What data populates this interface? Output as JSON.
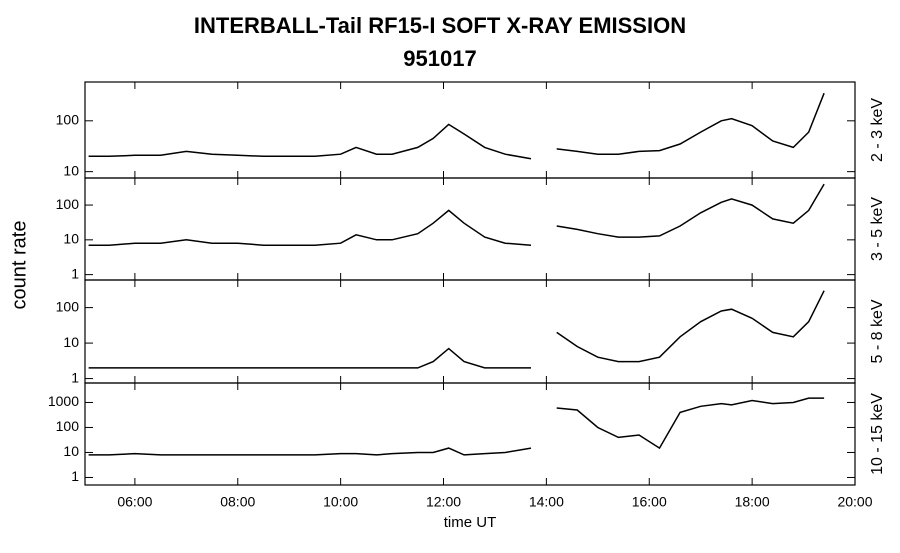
{
  "title": "INTERBALL-Tail RF15-I SOFT X-RAY EMISSION",
  "subtitle": "951017",
  "ylabel": "count rate",
  "xlabel": "time UT",
  "chart_data": [
    {
      "type": "line",
      "ylabel": "2 - 3 keV",
      "color": "#000000",
      "log": true,
      "xlim": [
        5.03,
        20
      ],
      "ylim": [
        7.5,
        580
      ],
      "yticks": [
        10,
        100
      ],
      "x": [
        5.1,
        5.5,
        6,
        6.5,
        7,
        7.5,
        8,
        8.5,
        9,
        9.5,
        10,
        10.3,
        10.7,
        11,
        11.5,
        11.8,
        12.1,
        12.4,
        12.8,
        13.2,
        13.7,
        13.9,
        14.2,
        14.6,
        15,
        15.4,
        15.8,
        16.2,
        16.6,
        17,
        17.4,
        17.6,
        18,
        18.4,
        18.8,
        19.1,
        19.4
      ],
      "values": [
        20,
        20,
        21,
        21,
        25,
        22,
        21,
        20,
        20,
        20,
        22,
        30,
        22,
        22,
        30,
        45,
        85,
        55,
        30,
        22,
        18,
        null,
        28,
        25,
        22,
        22,
        25,
        26,
        35,
        60,
        100,
        110,
        80,
        40,
        30,
        60,
        350
      ]
    },
    {
      "type": "line",
      "ylabel": "3 - 5 keV",
      "color": "#000000",
      "log": true,
      "xlim": [
        5.03,
        20
      ],
      "ylim": [
        0.7,
        600
      ],
      "yticks": [
        1,
        10,
        100
      ],
      "x": [
        5.1,
        5.5,
        6,
        6.5,
        7,
        7.5,
        8,
        8.5,
        9,
        9.5,
        10,
        10.3,
        10.7,
        11,
        11.5,
        11.8,
        12.1,
        12.4,
        12.8,
        13.2,
        13.7,
        13.9,
        14.2,
        14.6,
        15,
        15.4,
        15.8,
        16.2,
        16.6,
        17,
        17.4,
        17.6,
        18,
        18.4,
        18.8,
        19.1,
        19.4
      ],
      "values": [
        7,
        7,
        8,
        8,
        10,
        8,
        8,
        7,
        7,
        7,
        8,
        14,
        10,
        10,
        15,
        30,
        70,
        30,
        12,
        8,
        7,
        null,
        25,
        20,
        15,
        12,
        12,
        13,
        25,
        60,
        120,
        150,
        100,
        40,
        30,
        70,
        400
      ]
    },
    {
      "type": "line",
      "ylabel": "5 - 8 keV",
      "color": "#000000",
      "log": true,
      "xlim": [
        5.03,
        20
      ],
      "ylim": [
        0.75,
        600
      ],
      "yticks": [
        1,
        10,
        100
      ],
      "x": [
        5.1,
        5.5,
        6,
        6.5,
        7,
        7.5,
        8,
        8.5,
        9,
        9.5,
        10,
        10.3,
        10.7,
        11,
        11.5,
        11.8,
        12.1,
        12.4,
        12.8,
        13.2,
        13.7,
        13.9,
        14.2,
        14.6,
        15,
        15.4,
        15.8,
        16.2,
        16.6,
        17,
        17.4,
        17.6,
        18,
        18.4,
        18.8,
        19.1,
        19.4
      ],
      "values": [
        2,
        2,
        2,
        2,
        2,
        2,
        2,
        2,
        2,
        2,
        2,
        2,
        2,
        2,
        2,
        3,
        7,
        3,
        2,
        2,
        2,
        null,
        20,
        8,
        4,
        3,
        3,
        4,
        15,
        40,
        80,
        90,
        50,
        20,
        15,
        40,
        300
      ]
    },
    {
      "type": "line",
      "ylabel": "10 - 15 keV",
      "color": "#000000",
      "log": true,
      "xlim": [
        5.03,
        20
      ],
      "ylim": [
        0.5,
        6000
      ],
      "yticks": [
        1,
        10,
        100,
        1000
      ],
      "xticks": [
        {
          "value": 6,
          "label": "06:00"
        },
        {
          "value": 8,
          "label": "08:00"
        },
        {
          "value": 10,
          "label": "10:00"
        },
        {
          "value": 12,
          "label": "12:00"
        },
        {
          "value": 14,
          "label": "14:00"
        },
        {
          "value": 16,
          "label": "16:00"
        },
        {
          "value": 18,
          "label": "18:00"
        },
        {
          "value": 20,
          "label": "20:00"
        }
      ],
      "x": [
        5.1,
        5.5,
        6,
        6.5,
        7,
        7.5,
        8,
        8.5,
        9,
        9.5,
        10,
        10.3,
        10.7,
        11,
        11.5,
        11.8,
        12.1,
        12.4,
        12.8,
        13.2,
        13.7,
        13.9,
        14.2,
        14.6,
        15,
        15.4,
        15.8,
        16.2,
        16.6,
        17,
        17.4,
        17.6,
        18,
        18.4,
        18.8,
        19.1,
        19.4
      ],
      "values": [
        8,
        8,
        9,
        8,
        8,
        8,
        8,
        8,
        8,
        8,
        9,
        9,
        8,
        9,
        10,
        10,
        15,
        8,
        9,
        10,
        15,
        null,
        600,
        500,
        100,
        40,
        50,
        15,
        400,
        700,
        900,
        800,
        1200,
        900,
        1000,
        1500,
        1500
      ]
    }
  ]
}
